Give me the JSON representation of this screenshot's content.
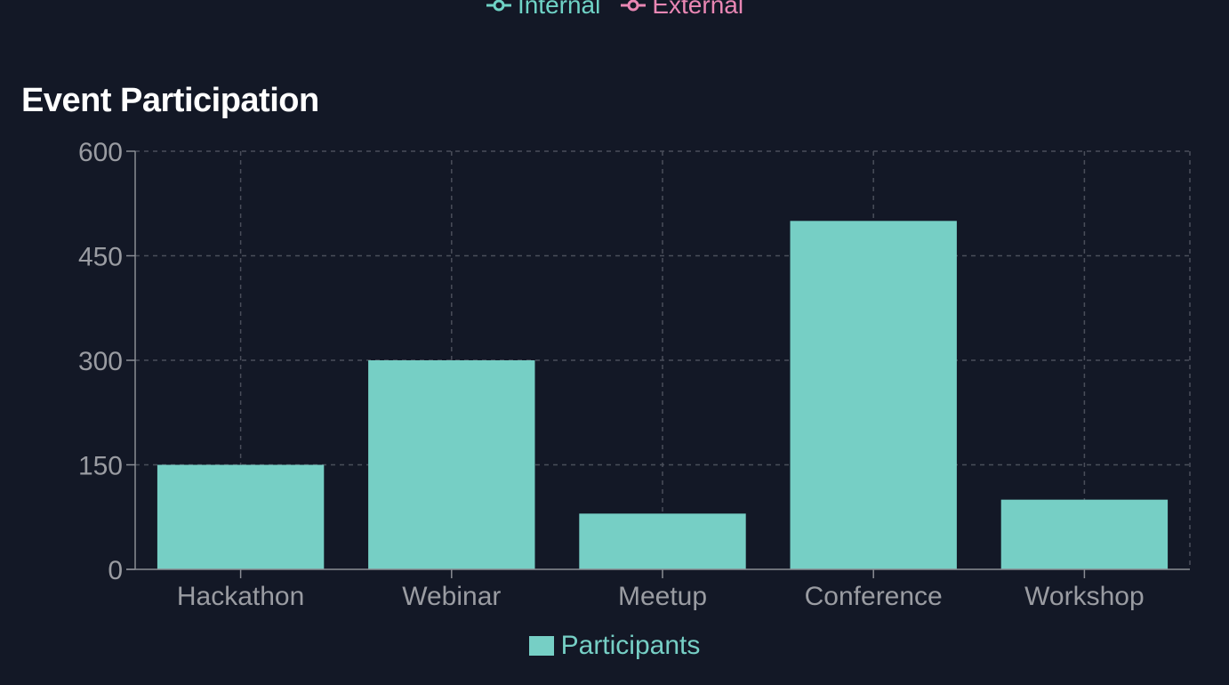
{
  "top_legend": {
    "items": [
      {
        "label": "Internal",
        "color": "#6fd3c6",
        "icon": "line-circle-marker-icon"
      },
      {
        "label": "External",
        "color": "#e987b4",
        "icon": "line-circle-marker-icon"
      }
    ]
  },
  "chart_data": {
    "type": "bar",
    "title": "Event Participation",
    "categories": [
      "Hackathon",
      "Webinar",
      "Meetup",
      "Conference",
      "Workshop"
    ],
    "series": [
      {
        "name": "Participants",
        "values": [
          150,
          300,
          80,
          500,
          100
        ],
        "color": "#76cfc5"
      }
    ],
    "ylim": [
      0,
      600
    ],
    "yticks": [
      0,
      150,
      300,
      450,
      600
    ],
    "grid": true,
    "grid_style": "dashed",
    "legend_position": "bottom",
    "xlabel": "",
    "ylabel": ""
  },
  "colors": {
    "background": "#131826",
    "grid": "#4a4e5a",
    "axis": "#8a8d94",
    "tick_text": "#9a9ca2",
    "title": "#ffffff"
  }
}
